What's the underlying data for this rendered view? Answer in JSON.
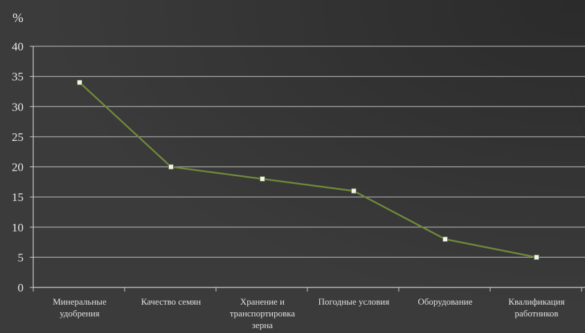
{
  "chart_data": {
    "type": "line",
    "title": "",
    "xlabel": "",
    "ylabel": "%",
    "ylim": [
      0,
      40
    ],
    "yticks": [
      0,
      5,
      10,
      15,
      20,
      25,
      30,
      35,
      40
    ],
    "grid": true,
    "legend": "none",
    "categories": [
      [
        "Минеральные",
        "удобрения"
      ],
      [
        "Качество семян"
      ],
      [
        "Хранение  и",
        "транспортировка",
        "зерна"
      ],
      [
        "Погодные условия"
      ],
      [
        "Оборудование"
      ],
      [
        "Квалификация",
        "работников"
      ]
    ],
    "series": [
      {
        "values": [
          34,
          20,
          18,
          16,
          8,
          5
        ]
      }
    ],
    "colors": {
      "background": "#3a3a3a",
      "line": "#6e8a3a",
      "marker": "#f2f2f2",
      "grid": "#a8a8a8",
      "text": "#e8e8e8"
    }
  }
}
